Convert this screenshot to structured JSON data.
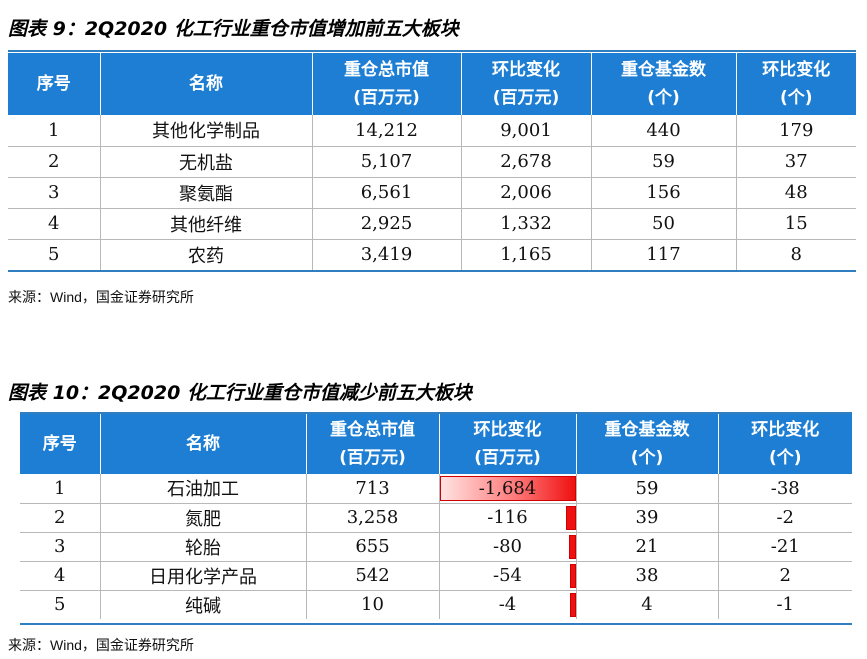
{
  "table1": {
    "title": "图表 9：2Q2020 化工行业重仓市值增加前五大板块",
    "headers": [
      [
        "序号"
      ],
      [
        "名称"
      ],
      [
        "重仓总市值",
        "(百万元)"
      ],
      [
        "环比变化",
        "(百万元)"
      ],
      [
        "重仓基金数",
        "(个)"
      ],
      [
        "环比变化",
        "(个)"
      ]
    ],
    "rows": [
      [
        "1",
        "其他化学制品",
        "14,212",
        "9,001",
        "440",
        "179"
      ],
      [
        "2",
        "无机盐",
        "5,107",
        "2,678",
        "59",
        "37"
      ],
      [
        "3",
        "聚氨酯",
        "6,561",
        "2,006",
        "156",
        "48"
      ],
      [
        "4",
        "其他纤维",
        "2,925",
        "1,332",
        "50",
        "15"
      ],
      [
        "5",
        "农药",
        "3,419",
        "1,165",
        "117",
        "8"
      ]
    ],
    "source": "来源：Wind，国金证券研究所"
  },
  "table2": {
    "title": "图表 10：2Q2020 化工行业重仓市值减少前五大板块",
    "headers": [
      [
        "序号"
      ],
      [
        "名称"
      ],
      [
        "重仓总市值",
        "(百万元)"
      ],
      [
        "环比变化",
        "(百万元)"
      ],
      [
        "重仓基金数",
        "(个)"
      ],
      [
        "环比变化",
        "(个)"
      ]
    ],
    "rows": [
      [
        "1",
        "石油加工",
        "713",
        "-1,684",
        "59",
        "-38"
      ],
      [
        "2",
        "氮肥",
        "3,258",
        "-116",
        "39",
        "-2"
      ],
      [
        "3",
        "轮胎",
        "655",
        "-80",
        "21",
        "-21"
      ],
      [
        "4",
        "日用化学产品",
        "542",
        "-54",
        "38",
        "2"
      ],
      [
        "5",
        "纯碱",
        "10",
        "-4",
        "4",
        "-1"
      ]
    ],
    "databar_values": [
      -1684,
      -116,
      -80,
      -54,
      -4
    ],
    "databar_color": "#ee1111",
    "source": "来源：Wind，国金证券研究所"
  }
}
